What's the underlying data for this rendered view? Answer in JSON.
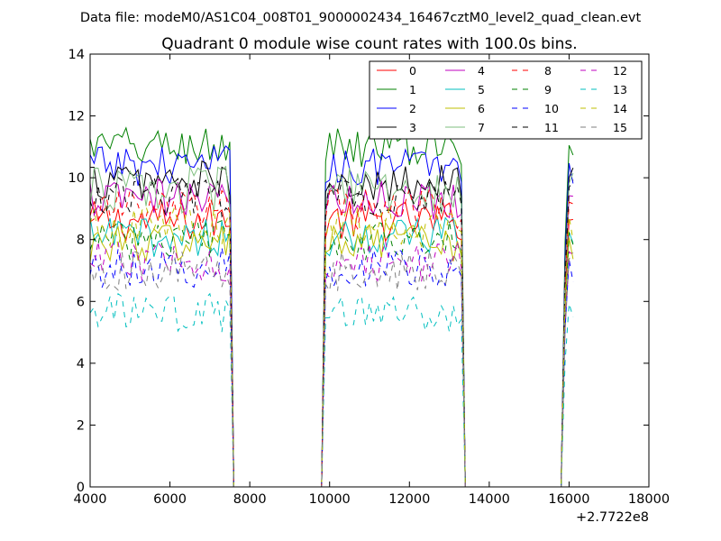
{
  "figure": {
    "suptitle": "Data file: modeM0/AS1C04_008T01_9000002434_16467cztM0_level2_quad_clean.evt",
    "x_offset_label": "+2.7722e8"
  },
  "chart_data": {
    "type": "line",
    "title": "Quadrant 0 module wise count rates with 100.0s bins.",
    "xlabel": "",
    "ylabel": "",
    "xlim": [
      4000,
      18000
    ],
    "ylim": [
      0,
      14
    ],
    "xticks": [
      4000,
      6000,
      8000,
      10000,
      12000,
      14000,
      16000,
      18000
    ],
    "xtick_labels": [
      "4000",
      "6000",
      "8000",
      "10000",
      "12000",
      "14000",
      "16000",
      "18000"
    ],
    "yticks": [
      0,
      2,
      4,
      6,
      8,
      10,
      12,
      14
    ],
    "ytick_labels": [
      "0",
      "2",
      "4",
      "6",
      "8",
      "10",
      "12",
      "14"
    ],
    "x_offset": 277220000,
    "grid": false,
    "legend_position": "top-right",
    "legend_columns": 4,
    "x_bins": {
      "start": 4000,
      "end": 16100,
      "step": 100
    },
    "segments": [
      {
        "start": 4000,
        "end": 7500
      },
      {
        "start": 9900,
        "end": 13300
      },
      {
        "start": 15900,
        "end": 16100
      }
    ],
    "series": [
      {
        "name": "0",
        "color": "#ff0000",
        "dash": "solid",
        "mean": 8.6,
        "noise": 0.3
      },
      {
        "name": "1",
        "color": "#008000",
        "dash": "solid",
        "mean": 11.0,
        "noise": 0.3
      },
      {
        "name": "2",
        "color": "#0000ff",
        "dash": "solid",
        "mean": 10.4,
        "noise": 0.3
      },
      {
        "name": "3",
        "color": "#000000",
        "dash": "solid",
        "mean": 9.9,
        "noise": 0.3
      },
      {
        "name": "4",
        "color": "#bf00bf",
        "dash": "solid",
        "mean": 9.3,
        "noise": 0.3
      },
      {
        "name": "5",
        "color": "#00bfbf",
        "dash": "solid",
        "mean": 8.1,
        "noise": 0.3
      },
      {
        "name": "6",
        "color": "#bfbf00",
        "dash": "solid",
        "mean": 7.9,
        "noise": 0.3
      },
      {
        "name": "7",
        "color": "#7fbf7f",
        "dash": "solid",
        "mean": 9.6,
        "noise": 0.35
      },
      {
        "name": "8",
        "color": "#ff0000",
        "dash": "dashed",
        "mean": 9.0,
        "noise": 0.3
      },
      {
        "name": "9",
        "color": "#008000",
        "dash": "dashed",
        "mean": 8.0,
        "noise": 0.3
      },
      {
        "name": "10",
        "color": "#0000ff",
        "dash": "dashed",
        "mean": 7.1,
        "noise": 0.3
      },
      {
        "name": "11",
        "color": "#000000",
        "dash": "dashed",
        "mean": 9.4,
        "noise": 0.3
      },
      {
        "name": "12",
        "color": "#bf00bf",
        "dash": "dashed",
        "mean": 7.3,
        "noise": 0.3
      },
      {
        "name": "13",
        "color": "#00bfbf",
        "dash": "dashed",
        "mean": 5.6,
        "noise": 0.3
      },
      {
        "name": "14",
        "color": "#bfbf00",
        "dash": "dashed",
        "mean": 8.4,
        "noise": 0.3
      },
      {
        "name": "15",
        "color": "#7f7f7f",
        "dash": "dashed",
        "mean": 7.0,
        "noise": 0.3
      }
    ]
  }
}
